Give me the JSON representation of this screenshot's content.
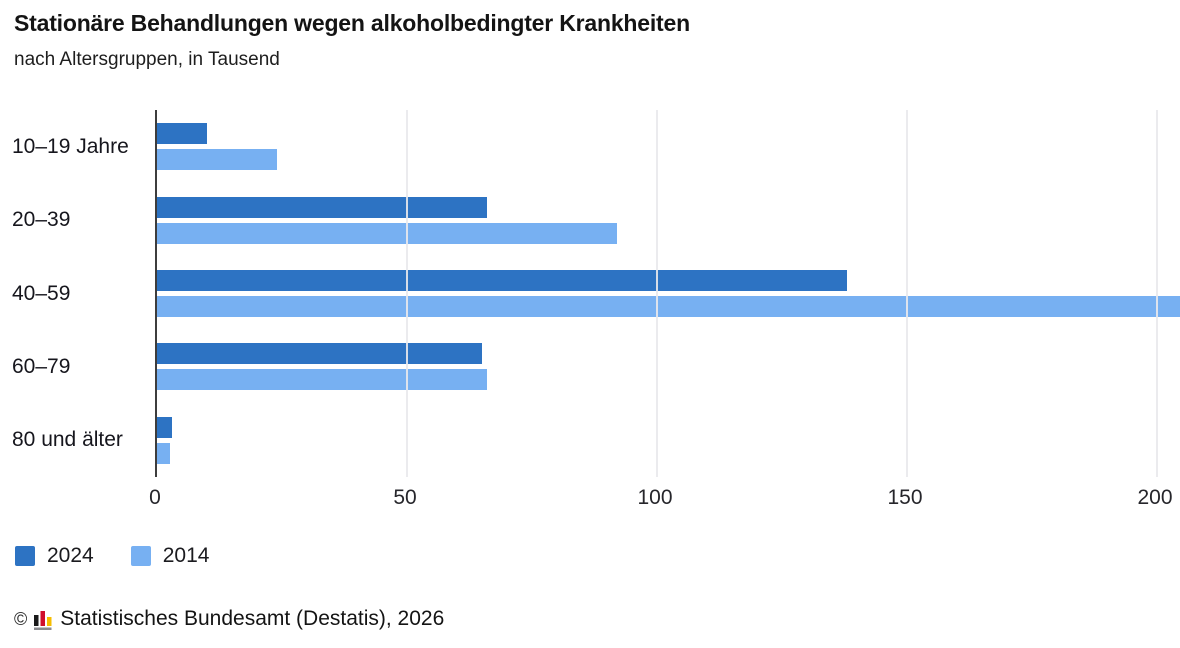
{
  "header": {
    "title": "Stationäre Behandlungen wegen alkoholbedingter Krankheiten",
    "subtitle": "nach Altersgruppen, in Tausend"
  },
  "chart_data": {
    "type": "bar",
    "orientation": "horizontal",
    "title": "Stationäre Behandlungen wegen alkoholbedingter Krankheiten",
    "subtitle": "nach Altersgruppen, in Tausend",
    "categories": [
      "10–19 Jahre",
      "20–39",
      "40–59",
      "60–79",
      "80 und älter"
    ],
    "series": [
      {
        "name": "2024",
        "color": "#2d73c3",
        "values": [
          10,
          66,
          138,
          65,
          3
        ]
      },
      {
        "name": "2014",
        "color": "#77b0f2",
        "values": [
          24,
          92,
          205,
          66,
          2.5
        ]
      }
    ],
    "xlabel": "",
    "ylabel": "",
    "xlim": [
      0,
      205
    ],
    "xticks": [
      0,
      50,
      100,
      150,
      200
    ],
    "grid": true,
    "gridlines_over_bars": true,
    "legend_position": "bottom-left",
    "note": "2014 bar for 40–59 is clipped at the right chart edge (value ≥ 205)"
  },
  "footer": {
    "copyright": "©",
    "source": "Statistisches Bundesamt (Destatis), 2026",
    "logo": "destatis-bars-icon",
    "logo_colors": {
      "black": "#1a1a1a",
      "red": "#d00f2c",
      "gold": "#f6bd00",
      "baseline": "#8a8a8e"
    }
  }
}
